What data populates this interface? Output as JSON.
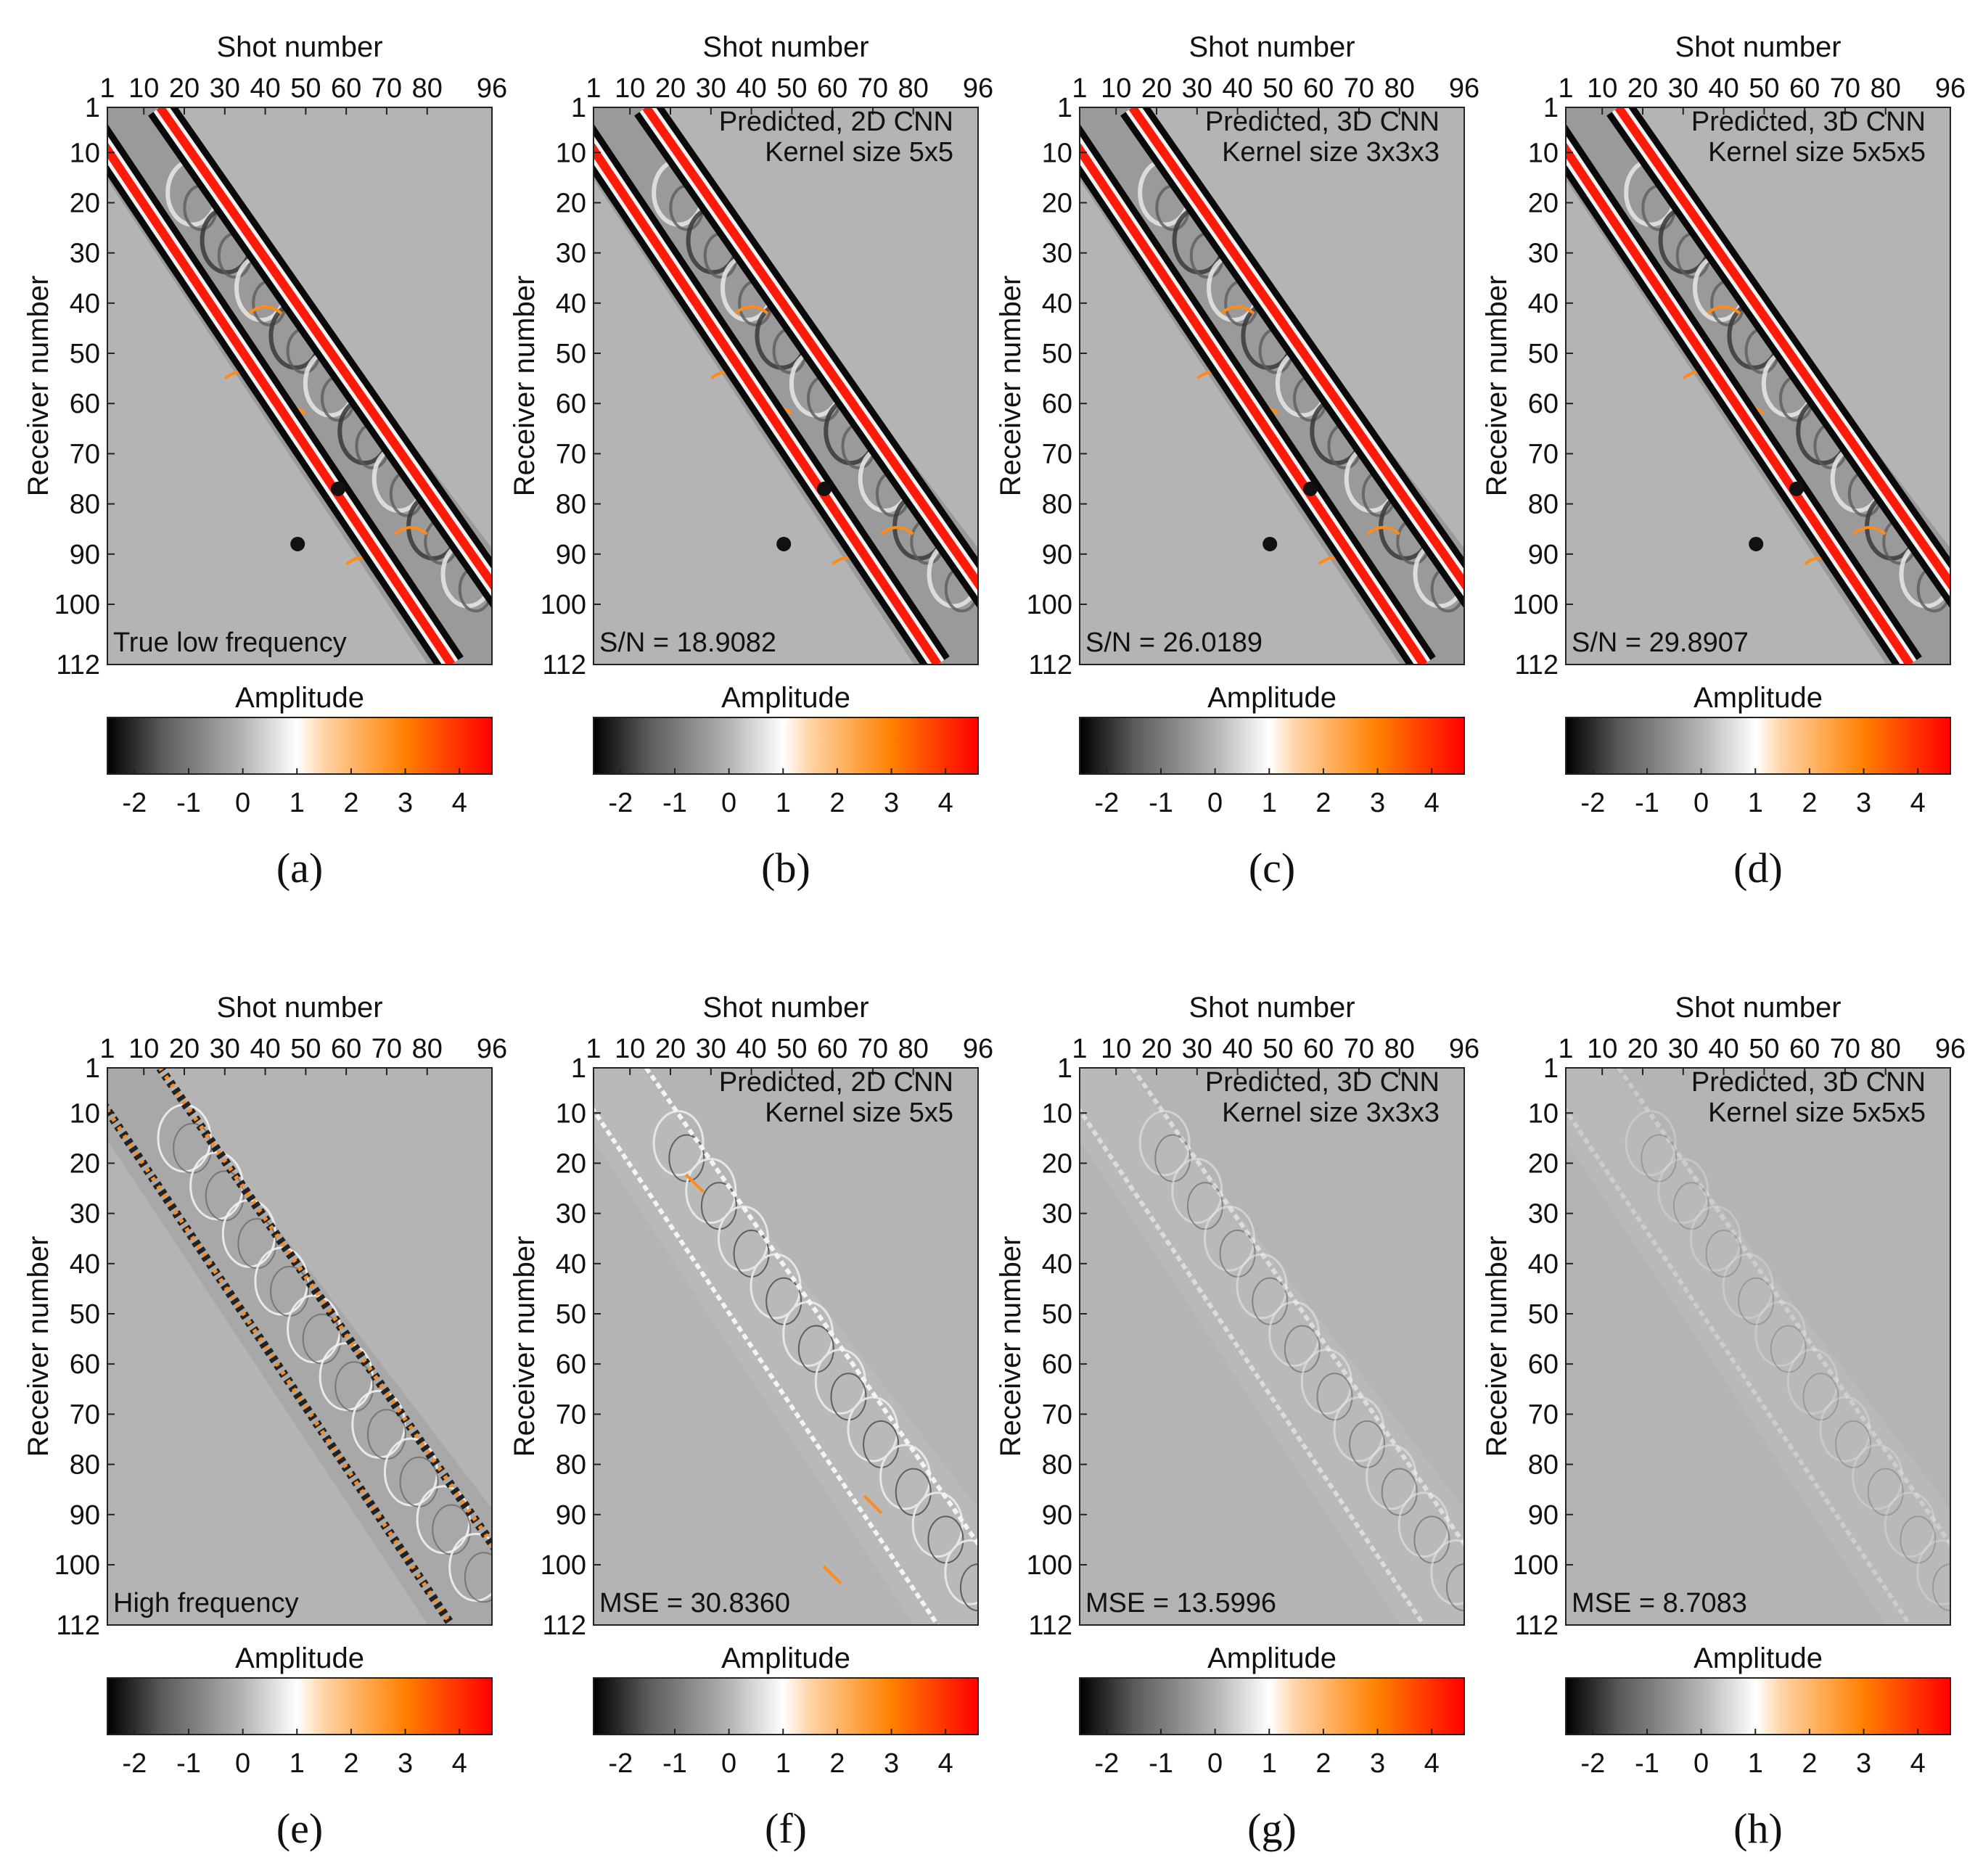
{
  "figure": {
    "colors": {
      "panel_background": "#b4b4b4",
      "band_dark": "#0a0a0a",
      "band_light": "#f2f2f2",
      "event_red": "#ff1a0a",
      "event_orange": "#ff8c1a",
      "frame": "#222222"
    },
    "colormap_stops": [
      {
        "value": -2.5,
        "color": "#000000"
      },
      {
        "value": -1.5,
        "color": "#5a5a5a"
      },
      {
        "value": 0.0,
        "color": "#b4b4b4"
      },
      {
        "value": 1.0,
        "color": "#ffffff"
      },
      {
        "value": 1.5,
        "color": "#ffd3a6"
      },
      {
        "value": 3.0,
        "color": "#ff8000"
      },
      {
        "value": 4.6,
        "color": "#ff0000"
      }
    ]
  },
  "chart_data": [
    {
      "type": "heatmap",
      "panel_label": "(a)",
      "xlabel": "Shot number",
      "ylabel": "Receiver number",
      "x_range": [
        1,
        96
      ],
      "y_range": [
        1,
        112
      ],
      "xticks": [
        1,
        10,
        20,
        30,
        40,
        50,
        60,
        70,
        80,
        96
      ],
      "yticks": [
        1,
        10,
        20,
        30,
        40,
        50,
        60,
        70,
        80,
        90,
        100,
        112
      ],
      "annotation_top": [],
      "annotation_bottom": "True low frequency",
      "style": "lowfreq",
      "colorbar": {
        "label": "Amplitude",
        "range": [
          -2.5,
          4.6
        ],
        "ticks": [
          -2,
          -1,
          0,
          1,
          2,
          3,
          4
        ]
      }
    },
    {
      "type": "heatmap",
      "panel_label": "(b)",
      "xlabel": "Shot number",
      "ylabel": "Receiver number",
      "x_range": [
        1,
        96
      ],
      "y_range": [
        1,
        112
      ],
      "xticks": [
        1,
        10,
        20,
        30,
        40,
        50,
        60,
        70,
        80,
        96
      ],
      "yticks": [
        1,
        10,
        20,
        30,
        40,
        50,
        60,
        70,
        80,
        90,
        100,
        112
      ],
      "annotation_top": [
        "Predicted, 2D CNN",
        "Kernel size 5x5"
      ],
      "annotation_bottom": "S/N = 18.9082",
      "style": "lowfreq",
      "colorbar": {
        "label": "Amplitude",
        "range": [
          -2.5,
          4.6
        ],
        "ticks": [
          -2,
          -1,
          0,
          1,
          2,
          3,
          4
        ]
      }
    },
    {
      "type": "heatmap",
      "panel_label": "(c)",
      "xlabel": "Shot number",
      "ylabel": "Receiver number",
      "x_range": [
        1,
        96
      ],
      "y_range": [
        1,
        112
      ],
      "xticks": [
        1,
        10,
        20,
        30,
        40,
        50,
        60,
        70,
        80,
        96
      ],
      "yticks": [
        1,
        10,
        20,
        30,
        40,
        50,
        60,
        70,
        80,
        90,
        100,
        112
      ],
      "annotation_top": [
        "Predicted, 3D CNN",
        "Kernel size 3x3x3"
      ],
      "annotation_bottom": "S/N = 26.0189",
      "style": "lowfreq",
      "colorbar": {
        "label": "Amplitude",
        "range": [
          -2.5,
          4.6
        ],
        "ticks": [
          -2,
          -1,
          0,
          1,
          2,
          3,
          4
        ]
      }
    },
    {
      "type": "heatmap",
      "panel_label": "(d)",
      "xlabel": "Shot number",
      "ylabel": "Receiver number",
      "x_range": [
        1,
        96
      ],
      "y_range": [
        1,
        112
      ],
      "xticks": [
        1,
        10,
        20,
        30,
        40,
        50,
        60,
        70,
        80,
        96
      ],
      "yticks": [
        1,
        10,
        20,
        30,
        40,
        50,
        60,
        70,
        80,
        90,
        100,
        112
      ],
      "annotation_top": [
        "Predicted, 3D CNN",
        "Kernel size 5x5x5"
      ],
      "annotation_bottom": "S/N = 29.8907",
      "style": "lowfreq",
      "colorbar": {
        "label": "Amplitude",
        "range": [
          -2.5,
          4.6
        ],
        "ticks": [
          -2,
          -1,
          0,
          1,
          2,
          3,
          4
        ]
      }
    },
    {
      "type": "heatmap",
      "panel_label": "(e)",
      "xlabel": "Shot number",
      "ylabel": "Receiver number",
      "x_range": [
        1,
        96
      ],
      "y_range": [
        1,
        112
      ],
      "xticks": [
        1,
        10,
        20,
        30,
        40,
        50,
        60,
        70,
        80,
        96
      ],
      "yticks": [
        1,
        10,
        20,
        30,
        40,
        50,
        60,
        70,
        80,
        90,
        100,
        112
      ],
      "annotation_top": [],
      "annotation_bottom": "High frequency",
      "style": "highfreq",
      "colorbar": {
        "label": "Amplitude",
        "range": [
          -2.5,
          4.6
        ],
        "ticks": [
          -2,
          -1,
          0,
          1,
          2,
          3,
          4
        ]
      }
    },
    {
      "type": "heatmap",
      "panel_label": "(f)",
      "xlabel": "Shot number",
      "ylabel": "Receiver number",
      "x_range": [
        1,
        96
      ],
      "y_range": [
        1,
        112
      ],
      "xticks": [
        1,
        10,
        20,
        30,
        40,
        50,
        60,
        70,
        80,
        96
      ],
      "yticks": [
        1,
        10,
        20,
        30,
        40,
        50,
        60,
        70,
        80,
        90,
        100,
        112
      ],
      "annotation_top": [
        "Predicted, 2D CNN",
        "Kernel size 5x5"
      ],
      "annotation_bottom": "MSE = 30.8360",
      "style": "error_strong",
      "colorbar": {
        "label": "Amplitude",
        "range": [
          -2.5,
          4.6
        ],
        "ticks": [
          -2,
          -1,
          0,
          1,
          2,
          3,
          4
        ]
      }
    },
    {
      "type": "heatmap",
      "panel_label": "(g)",
      "xlabel": "Shot number",
      "ylabel": "Receiver number",
      "x_range": [
        1,
        96
      ],
      "y_range": [
        1,
        112
      ],
      "xticks": [
        1,
        10,
        20,
        30,
        40,
        50,
        60,
        70,
        80,
        96
      ],
      "yticks": [
        1,
        10,
        20,
        30,
        40,
        50,
        60,
        70,
        80,
        90,
        100,
        112
      ],
      "annotation_top": [
        "Predicted, 3D CNN",
        "Kernel size 3x3x3"
      ],
      "annotation_bottom": "MSE = 13.5996",
      "style": "error_medium",
      "colorbar": {
        "label": "Amplitude",
        "range": [
          -2.5,
          4.6
        ],
        "ticks": [
          -2,
          -1,
          0,
          1,
          2,
          3,
          4
        ]
      }
    },
    {
      "type": "heatmap",
      "panel_label": "(h)",
      "xlabel": "Shot number",
      "ylabel": "Receiver number",
      "x_range": [
        1,
        96
      ],
      "y_range": [
        1,
        112
      ],
      "xticks": [
        1,
        10,
        20,
        30,
        40,
        50,
        60,
        70,
        80,
        96
      ],
      "yticks": [
        1,
        10,
        20,
        30,
        40,
        50,
        60,
        70,
        80,
        90,
        100,
        112
      ],
      "annotation_top": [
        "Predicted, 3D CNN",
        "Kernel size 5x5x5"
      ],
      "annotation_bottom": "MSE = 8.7083",
      "style": "error_weak",
      "colorbar": {
        "label": "Amplitude",
        "range": [
          -2.5,
          4.6
        ],
        "ticks": [
          -2,
          -1,
          0,
          1,
          2,
          3,
          4
        ]
      }
    }
  ]
}
